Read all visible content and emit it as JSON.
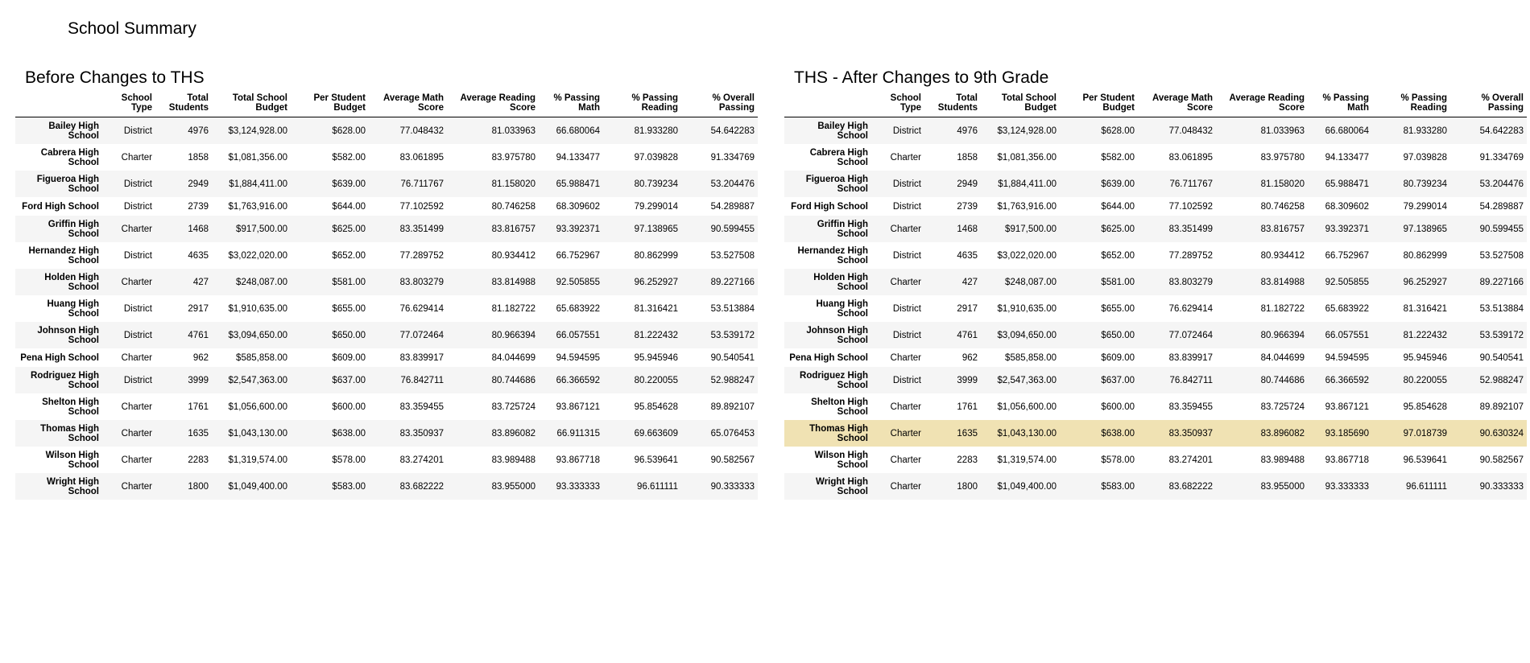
{
  "page_title": "School Summary",
  "columns": [
    "",
    "School\nType",
    "Total\nStudents",
    "Total School\nBudget",
    "Per Student\nBudget",
    "Average Math\nScore",
    "Average Reading\nScore",
    "% Passing\nMath",
    "% Passing\nReading",
    "% Overall\nPassing"
  ],
  "tables": [
    {
      "title": "Before Changes to THS",
      "highlight_row": null,
      "rows": [
        [
          "Bailey High\nSchool",
          "District",
          "4976",
          "$3,124,928.00",
          "$628.00",
          "77.048432",
          "81.033963",
          "66.680064",
          "81.933280",
          "54.642283"
        ],
        [
          "Cabrera High\nSchool",
          "Charter",
          "1858",
          "$1,081,356.00",
          "$582.00",
          "83.061895",
          "83.975780",
          "94.133477",
          "97.039828",
          "91.334769"
        ],
        [
          "Figueroa High\nSchool",
          "District",
          "2949",
          "$1,884,411.00",
          "$639.00",
          "76.711767",
          "81.158020",
          "65.988471",
          "80.739234",
          "53.204476"
        ],
        [
          "Ford High School",
          "District",
          "2739",
          "$1,763,916.00",
          "$644.00",
          "77.102592",
          "80.746258",
          "68.309602",
          "79.299014",
          "54.289887"
        ],
        [
          "Griffin High\nSchool",
          "Charter",
          "1468",
          "$917,500.00",
          "$625.00",
          "83.351499",
          "83.816757",
          "93.392371",
          "97.138965",
          "90.599455"
        ],
        [
          "Hernandez High\nSchool",
          "District",
          "4635",
          "$3,022,020.00",
          "$652.00",
          "77.289752",
          "80.934412",
          "66.752967",
          "80.862999",
          "53.527508"
        ],
        [
          "Holden High\nSchool",
          "Charter",
          "427",
          "$248,087.00",
          "$581.00",
          "83.803279",
          "83.814988",
          "92.505855",
          "96.252927",
          "89.227166"
        ],
        [
          "Huang High\nSchool",
          "District",
          "2917",
          "$1,910,635.00",
          "$655.00",
          "76.629414",
          "81.182722",
          "65.683922",
          "81.316421",
          "53.513884"
        ],
        [
          "Johnson High\nSchool",
          "District",
          "4761",
          "$3,094,650.00",
          "$650.00",
          "77.072464",
          "80.966394",
          "66.057551",
          "81.222432",
          "53.539172"
        ],
        [
          "Pena High School",
          "Charter",
          "962",
          "$585,858.00",
          "$609.00",
          "83.839917",
          "84.044699",
          "94.594595",
          "95.945946",
          "90.540541"
        ],
        [
          "Rodriguez High\nSchool",
          "District",
          "3999",
          "$2,547,363.00",
          "$637.00",
          "76.842711",
          "80.744686",
          "66.366592",
          "80.220055",
          "52.988247"
        ],
        [
          "Shelton High\nSchool",
          "Charter",
          "1761",
          "$1,056,600.00",
          "$600.00",
          "83.359455",
          "83.725724",
          "93.867121",
          "95.854628",
          "89.892107"
        ],
        [
          "Thomas High\nSchool",
          "Charter",
          "1635",
          "$1,043,130.00",
          "$638.00",
          "83.350937",
          "83.896082",
          "66.911315",
          "69.663609",
          "65.076453"
        ],
        [
          "Wilson High\nSchool",
          "Charter",
          "2283",
          "$1,319,574.00",
          "$578.00",
          "83.274201",
          "83.989488",
          "93.867718",
          "96.539641",
          "90.582567"
        ],
        [
          "Wright High\nSchool",
          "Charter",
          "1800",
          "$1,049,400.00",
          "$583.00",
          "83.682222",
          "83.955000",
          "93.333333",
          "96.611111",
          "90.333333"
        ]
      ]
    },
    {
      "title": "THS - After Changes to 9th Grade",
      "highlight_row": 12,
      "highlight_color": "#f0e2b3",
      "rows": [
        [
          "Bailey High\nSchool",
          "District",
          "4976",
          "$3,124,928.00",
          "$628.00",
          "77.048432",
          "81.033963",
          "66.680064",
          "81.933280",
          "54.642283"
        ],
        [
          "Cabrera High\nSchool",
          "Charter",
          "1858",
          "$1,081,356.00",
          "$582.00",
          "83.061895",
          "83.975780",
          "94.133477",
          "97.039828",
          "91.334769"
        ],
        [
          "Figueroa High\nSchool",
          "District",
          "2949",
          "$1,884,411.00",
          "$639.00",
          "76.711767",
          "81.158020",
          "65.988471",
          "80.739234",
          "53.204476"
        ],
        [
          "Ford High School",
          "District",
          "2739",
          "$1,763,916.00",
          "$644.00",
          "77.102592",
          "80.746258",
          "68.309602",
          "79.299014",
          "54.289887"
        ],
        [
          "Griffin High\nSchool",
          "Charter",
          "1468",
          "$917,500.00",
          "$625.00",
          "83.351499",
          "83.816757",
          "93.392371",
          "97.138965",
          "90.599455"
        ],
        [
          "Hernandez High\nSchool",
          "District",
          "4635",
          "$3,022,020.00",
          "$652.00",
          "77.289752",
          "80.934412",
          "66.752967",
          "80.862999",
          "53.527508"
        ],
        [
          "Holden High\nSchool",
          "Charter",
          "427",
          "$248,087.00",
          "$581.00",
          "83.803279",
          "83.814988",
          "92.505855",
          "96.252927",
          "89.227166"
        ],
        [
          "Huang High\nSchool",
          "District",
          "2917",
          "$1,910,635.00",
          "$655.00",
          "76.629414",
          "81.182722",
          "65.683922",
          "81.316421",
          "53.513884"
        ],
        [
          "Johnson High\nSchool",
          "District",
          "4761",
          "$3,094,650.00",
          "$650.00",
          "77.072464",
          "80.966394",
          "66.057551",
          "81.222432",
          "53.539172"
        ],
        [
          "Pena High School",
          "Charter",
          "962",
          "$585,858.00",
          "$609.00",
          "83.839917",
          "84.044699",
          "94.594595",
          "95.945946",
          "90.540541"
        ],
        [
          "Rodriguez High\nSchool",
          "District",
          "3999",
          "$2,547,363.00",
          "$637.00",
          "76.842711",
          "80.744686",
          "66.366592",
          "80.220055",
          "52.988247"
        ],
        [
          "Shelton High\nSchool",
          "Charter",
          "1761",
          "$1,056,600.00",
          "$600.00",
          "83.359455",
          "83.725724",
          "93.867121",
          "95.854628",
          "89.892107"
        ],
        [
          "Thomas High\nSchool",
          "Charter",
          "1635",
          "$1,043,130.00",
          "$638.00",
          "83.350937",
          "83.896082",
          "93.185690",
          "97.018739",
          "90.630324"
        ],
        [
          "Wilson High\nSchool",
          "Charter",
          "2283",
          "$1,319,574.00",
          "$578.00",
          "83.274201",
          "83.989488",
          "93.867718",
          "96.539641",
          "90.582567"
        ],
        [
          "Wright High\nSchool",
          "Charter",
          "1800",
          "$1,049,400.00",
          "$583.00",
          "83.682222",
          "83.955000",
          "93.333333",
          "96.611111",
          "90.333333"
        ]
      ]
    }
  ]
}
